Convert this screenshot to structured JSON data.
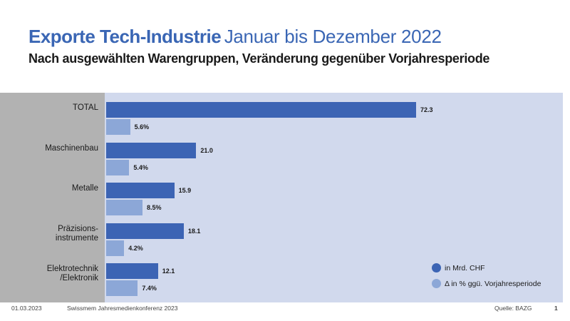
{
  "slide": {
    "title_strong": "Exporte Tech-Industrie",
    "title_light": "Januar bis Dezember 2022",
    "subtitle": "Nach ausgewählten Warengruppen, Veränderung gegenüber Vorjahresperiode"
  },
  "chart_data": {
    "type": "bar",
    "orientation": "horizontal",
    "title": "Exporte Tech-Industrie Januar bis Dezember 2022",
    "subtitle": "Nach ausgewählten Warengruppen, Veränderung gegenüber Vorjahresperiode",
    "categories": [
      "TOTAL",
      "Maschinenbau",
      "Metalle",
      "Präzisions-\ninstrumente",
      "Elektrotechnik\n/Elektronik"
    ],
    "series": [
      {
        "name": "in Mrd. CHF",
        "color": "#3c64b4",
        "values": [
          72.3,
          21.0,
          15.9,
          18.1,
          12.1
        ],
        "labels": [
          "72.3",
          "21.0",
          "15.9",
          "18.1",
          "12.1"
        ]
      },
      {
        "name": "Δ in % ggü. Vorjahresperiode",
        "color": "#8ca7d7",
        "values": [
          5.6,
          5.4,
          8.5,
          4.2,
          7.4
        ],
        "labels": [
          "5.6%",
          "5.4%",
          "8.5%",
          "4.2%",
          "7.4%"
        ]
      }
    ],
    "legend_position": "bottom-right",
    "grid": false
  },
  "footer": {
    "date": "01.03.2023",
    "event": "Swissmem Jahresmedienkonferenz 2023",
    "source": "Quelle: BAZG",
    "page": "1"
  }
}
